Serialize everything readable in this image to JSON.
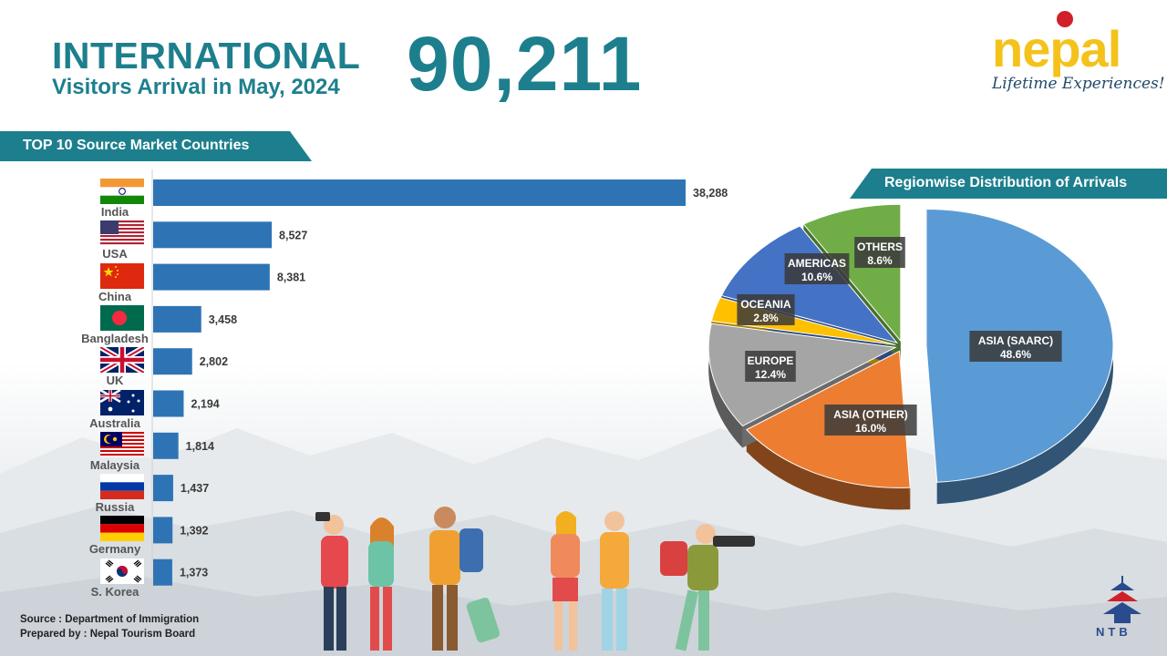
{
  "header": {
    "title_line1": "INTERNATIONAL",
    "title_line2": "Visitors Arrival in May, 2024",
    "total": "90,211"
  },
  "brand": {
    "word": "nepal",
    "tagline": "Lifetime Experiences!"
  },
  "left_panel": {
    "banner": "TOP 10 Source Market Countries"
  },
  "right_panel": {
    "banner": "Regionwise Distribution of Arrivals"
  },
  "footer": {
    "source": "Source : Department of Immigration",
    "prepared": "Prepared by : Nepal Tourism Board",
    "logo_text": "NTB"
  },
  "colors": {
    "teal": "#1d7f8d",
    "bar": "#2e74b5",
    "brand_yellow": "#f4c21a"
  },
  "chart_data": [
    {
      "type": "bar",
      "orientation": "horizontal",
      "categories": [
        "India",
        "USA",
        "China",
        "Bangladesh",
        "UK",
        "Australia",
        "Malaysia",
        "Russia",
        "Germany",
        "S. Korea"
      ],
      "values": [
        38288,
        8527,
        8381,
        3458,
        2802,
        2194,
        1814,
        1437,
        1392,
        1373
      ],
      "value_labels": [
        "38,288",
        "8,527",
        "8,381",
        "3,458",
        "2,802",
        "2,194",
        "1,814",
        "1,437",
        "1,392",
        "1,373"
      ],
      "flag_icons": [
        "india-flag-icon",
        "usa-flag-icon",
        "china-flag-icon",
        "bangladesh-flag-icon",
        "uk-flag-icon",
        "australia-flag-icon",
        "malaysia-flag-icon",
        "russia-flag-icon",
        "germany-flag-icon",
        "south-korea-flag-icon"
      ],
      "color": "#2e74b5",
      "xlim": [
        0,
        38288
      ]
    },
    {
      "type": "pie",
      "style": "3d-exploded",
      "slices": [
        {
          "label": "ASIA (SAARC)",
          "value": 48.6,
          "text": "48.6%",
          "color": "#5b9bd5"
        },
        {
          "label": "ASIA (OTHER)",
          "value": 16.0,
          "text": "16.0%",
          "color": "#ed7d31"
        },
        {
          "label": "EUROPE",
          "value": 12.4,
          "text": "12.4%",
          "color": "#a5a5a5"
        },
        {
          "label": "OCEANIA",
          "value": 2.8,
          "text": "2.8%",
          "color": "#ffc000"
        },
        {
          "label": "AMERICAS",
          "value": 10.6,
          "text": "10.6%",
          "color": "#4472c4"
        },
        {
          "label": "OTHERS",
          "value": 8.6,
          "text": "8.6%",
          "color": "#70ad47"
        }
      ]
    }
  ]
}
